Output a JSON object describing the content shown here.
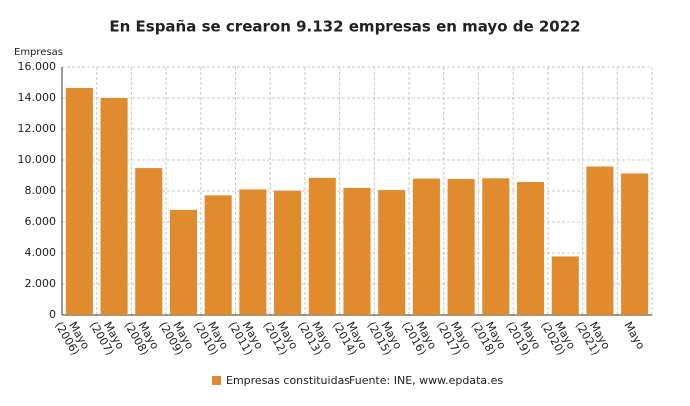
{
  "chart_data": {
    "type": "bar",
    "title": "En España se crearon 9.132 empresas en mayo de 2022",
    "y_label": "Empresas",
    "categories": [
      "Mayo (2006)",
      "Mayo (2007)",
      "Mayo (2008)",
      "Mayo (2009)",
      "Mayo (2010)",
      "Mayo (2011)",
      "Mayo (2012)",
      "Mayo (2013)",
      "Mayo (2014)",
      "Mayo (2015)",
      "Mayo (2016)",
      "Mayo (2017)",
      "Mayo (2018)",
      "Mayo (2019)",
      "Mayo (2020)",
      "Mayo (2021)",
      "Mayo"
    ],
    "series": [
      {
        "name": "Empresas constituidas",
        "color": "#e08c2e",
        "values": [
          14650,
          14000,
          9480,
          6780,
          7720,
          8100,
          8020,
          8850,
          8200,
          8060,
          8800,
          8780,
          8820,
          8580,
          3780,
          9580,
          9132
        ]
      }
    ],
    "source": "Fuente: INE, www.epdata.es",
    "ylim": [
      0,
      16000
    ],
    "yticks": [
      0,
      {
        "value": 2000,
        "label": "2.000"
      },
      {
        "value": 4000,
        "label": "4.000"
      },
      {
        "value": 6000,
        "label": "6.000"
      },
      {
        "value": 8000,
        "label": "8.000"
      },
      {
        "value": 10000,
        "label": "10.000"
      },
      {
        "value": 12000,
        "label": "12.000"
      },
      {
        "value": 14000,
        "label": "14.000"
      },
      {
        "value": 16000,
        "label": "16.000"
      }
    ],
    "grid": true
  }
}
